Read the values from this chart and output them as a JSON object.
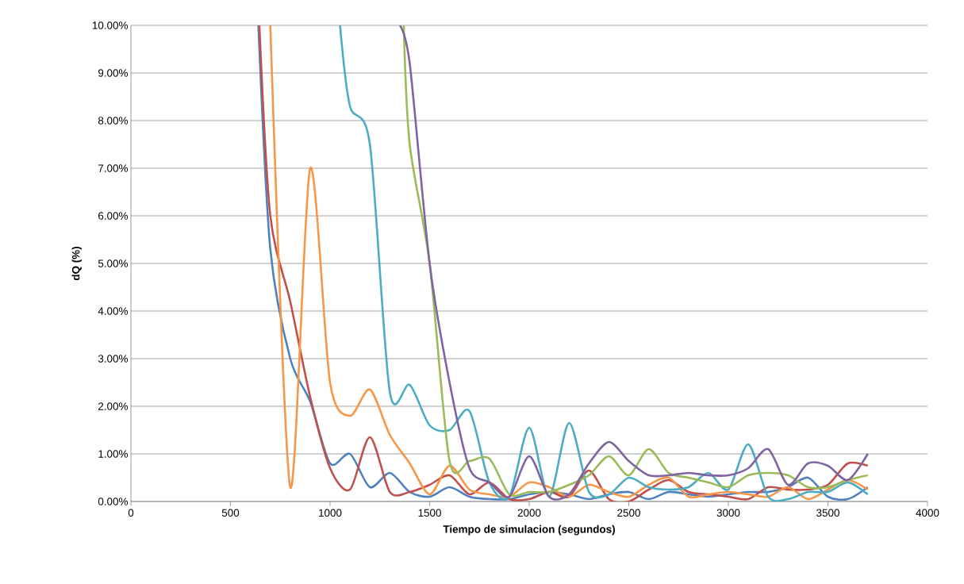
{
  "chart_data": {
    "type": "line",
    "xlabel": "Tiempo de simulacion (segundos)",
    "ylabel": "dQ (%)",
    "xlim": [
      0,
      4000
    ],
    "xticks": [
      0,
      500,
      1000,
      1500,
      2000,
      2500,
      3000,
      3500,
      4000
    ],
    "ylim": [
      0,
      10
    ],
    "yticks": [
      {
        "value": 0,
        "label": "0.00%"
      },
      {
        "value": 1,
        "label": "1.00%"
      },
      {
        "value": 2,
        "label": "2.00%"
      },
      {
        "value": 3,
        "label": "3.00%"
      },
      {
        "value": 4,
        "label": "4.00%"
      },
      {
        "value": 5,
        "label": "5.00%"
      },
      {
        "value": 6,
        "label": "6.00%"
      },
      {
        "value": 7,
        "label": "7.00%"
      },
      {
        "value": 8,
        "label": "8.00%"
      },
      {
        "value": 9,
        "label": "9.00%"
      },
      {
        "value": 10,
        "label": "10.00%"
      }
    ],
    "grid": "y",
    "series": [
      {
        "color": "#4f81bd",
        "x": [
          640,
          700,
          800,
          900,
          1000,
          1100,
          1200,
          1300,
          1400,
          1500,
          1600,
          1700,
          1800,
          1900,
          2000,
          2100,
          2200,
          2300,
          2400,
          2500,
          2600,
          2700,
          2800,
          2900,
          3000,
          3100,
          3200,
          3300,
          3400,
          3500,
          3600,
          3700
        ],
        "values": [
          10,
          5.3,
          3.0,
          2.1,
          0.8,
          1.0,
          0.3,
          0.6,
          0.2,
          0.1,
          0.3,
          0.1,
          0.05,
          0.05,
          0.15,
          0.2,
          0.15,
          0.05,
          0.15,
          0.2,
          0.05,
          0.2,
          0.15,
          0.1,
          0.15,
          0.2,
          0.2,
          0.3,
          0.5,
          0.1,
          0.05,
          0.3
        ]
      },
      {
        "color": "#c0504d",
        "x": [
          645,
          700,
          800,
          900,
          1000,
          1100,
          1200,
          1300,
          1400,
          1500,
          1600,
          1700,
          1800,
          1900,
          2000,
          2100,
          2200,
          2300,
          2400,
          2500,
          2600,
          2700,
          2800,
          2900,
          3000,
          3100,
          3200,
          3300,
          3400,
          3500,
          3600,
          3700
        ],
        "values": [
          10,
          6.0,
          4.2,
          2.2,
          0.7,
          0.25,
          1.35,
          0.2,
          0.2,
          0.35,
          0.55,
          0.15,
          0.4,
          0.05,
          0.05,
          0.2,
          0.1,
          0.65,
          0.05,
          0.0,
          0.25,
          0.45,
          0.2,
          0.15,
          0.1,
          0.05,
          0.3,
          0.25,
          0.25,
          0.35,
          0.8,
          0.75
        ]
      },
      {
        "color": "#f79646",
        "x": [
          700,
          800,
          900,
          1000,
          1100,
          1200,
          1300,
          1400,
          1500,
          1600,
          1700,
          1800,
          1900,
          2000,
          2100,
          2200,
          2300,
          2400,
          2500,
          2600,
          2700,
          2800,
          2900,
          3000,
          3100,
          3200,
          3300,
          3400,
          3500,
          3600,
          3700
        ],
        "values": [
          10,
          0.3,
          7.0,
          2.5,
          1.8,
          2.35,
          1.4,
          0.8,
          0.15,
          0.75,
          0.25,
          0.15,
          0.1,
          0.4,
          0.3,
          0.1,
          0.35,
          0.2,
          0.1,
          0.35,
          0.5,
          0.1,
          0.15,
          0.2,
          0.15,
          0.1,
          0.3,
          0.05,
          0.25,
          0.45,
          0.25
        ]
      },
      {
        "color": "#4bacc6",
        "x": [
          1050,
          1100,
          1200,
          1300,
          1400,
          1500,
          1600,
          1700,
          1800,
          1900,
          2000,
          2100,
          2200,
          2300,
          2400,
          2500,
          2600,
          2700,
          2800,
          2900,
          3000,
          3100,
          3200,
          3300,
          3400,
          3500,
          3600,
          3700
        ],
        "values": [
          10,
          8.3,
          7.5,
          2.3,
          2.45,
          1.6,
          1.5,
          1.9,
          0.4,
          0.1,
          1.55,
          0.1,
          1.65,
          0.2,
          0.15,
          0.5,
          0.3,
          0.25,
          0.3,
          0.6,
          0.25,
          1.2,
          0.1,
          0.05,
          0.2,
          0.2,
          0.4,
          0.15
        ]
      },
      {
        "color": "#9bbb59",
        "x": [
          1370,
          1400,
          1500,
          1600,
          1700,
          1800,
          1900,
          2000,
          2100,
          2200,
          2300,
          2400,
          2500,
          2600,
          2700,
          2800,
          2900,
          3000,
          3100,
          3200,
          3300,
          3400,
          3500,
          3600,
          3700
        ],
        "values": [
          10,
          7.5,
          5.0,
          0.85,
          0.85,
          0.9,
          0.15,
          0.2,
          0.2,
          0.35,
          0.55,
          0.95,
          0.55,
          1.1,
          0.6,
          0.5,
          0.4,
          0.3,
          0.55,
          0.6,
          0.55,
          0.3,
          0.3,
          0.45,
          0.55
        ]
      },
      {
        "color": "#8064a2",
        "x": [
          1350,
          1400,
          1500,
          1600,
          1700,
          1800,
          1900,
          2000,
          2100,
          2200,
          2300,
          2400,
          2500,
          2600,
          2700,
          2800,
          2900,
          3000,
          3100,
          3200,
          3300,
          3400,
          3500,
          3600,
          3700
        ],
        "values": [
          10,
          9.2,
          5.0,
          2.5,
          0.7,
          0.4,
          0.1,
          0.95,
          0.1,
          0.15,
          0.8,
          1.25,
          0.85,
          0.55,
          0.55,
          0.6,
          0.55,
          0.55,
          0.7,
          1.1,
          0.35,
          0.8,
          0.75,
          0.45,
          1.0
        ]
      }
    ]
  }
}
